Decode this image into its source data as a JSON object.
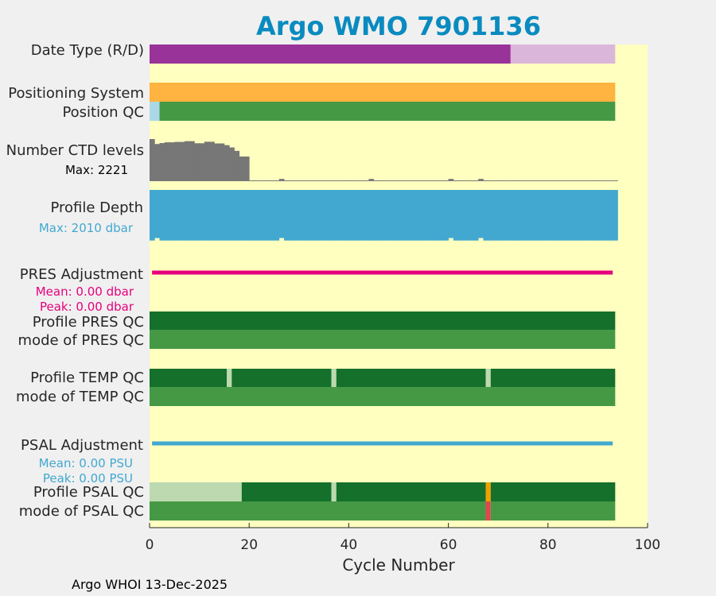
{
  "chart_data": {
    "type": "bar",
    "title": "Argo WMO 7901136",
    "title_color": "#0a8bbf",
    "xlabel": "Cycle Number",
    "xlim": [
      0,
      100
    ],
    "xticks": [
      "0",
      "20",
      "40",
      "60",
      "80",
      "100"
    ],
    "plot_background": "#ffffc0",
    "footer": "Argo WHOI 13-Dec-2025",
    "rows": [
      {
        "label": "Date Type (R/D)",
        "segments": [
          {
            "start": 0,
            "end": 72.5,
            "color": "#993399"
          },
          {
            "start": 72.5,
            "end": 93.5,
            "color": "#dbb6db"
          }
        ]
      },
      {
        "label": "Positioning System",
        "segments": [
          {
            "start": 0,
            "end": 93.5,
            "color": "#ffb340"
          }
        ]
      },
      {
        "label": "Position QC",
        "segments": [
          {
            "start": 0,
            "end": 2,
            "color": "#aad8e6"
          },
          {
            "start": 2,
            "end": 93.5,
            "color": "#459945"
          }
        ]
      },
      {
        "label": "Profile PRES QC",
        "segments": [
          {
            "start": 0,
            "end": 93.5,
            "color": "#14702b"
          }
        ]
      },
      {
        "label": "mode of PRES QC",
        "segments": [
          {
            "start": 0,
            "end": 93.5,
            "color": "#459945"
          }
        ]
      },
      {
        "label": "Profile TEMP QC",
        "segments": [
          {
            "start": 0,
            "end": 15.5,
            "color": "#14702b"
          },
          {
            "start": 15.5,
            "end": 16.5,
            "color": "#bcd9b0"
          },
          {
            "start": 16.5,
            "end": 36.5,
            "color": "#14702b"
          },
          {
            "start": 36.5,
            "end": 37.5,
            "color": "#bcd9b0"
          },
          {
            "start": 37.5,
            "end": 67.5,
            "color": "#14702b"
          },
          {
            "start": 67.5,
            "end": 68.5,
            "color": "#bcd9b0"
          },
          {
            "start": 68.5,
            "end": 93.5,
            "color": "#14702b"
          }
        ]
      },
      {
        "label": "mode of TEMP QC",
        "segments": [
          {
            "start": 0,
            "end": 93.5,
            "color": "#459945"
          }
        ]
      },
      {
        "label": "Profile PSAL QC",
        "segments": [
          {
            "start": 0,
            "end": 18.5,
            "color": "#bcd9b0"
          },
          {
            "start": 18.5,
            "end": 36.5,
            "color": "#14702b"
          },
          {
            "start": 36.5,
            "end": 37.5,
            "color": "#bcd9b0"
          },
          {
            "start": 37.5,
            "end": 67.5,
            "color": "#14702b"
          },
          {
            "start": 67.5,
            "end": 68.5,
            "color": "#f0a000"
          },
          {
            "start": 68.5,
            "end": 93.5,
            "color": "#14702b"
          }
        ]
      },
      {
        "label": "mode of PSAL QC",
        "segments": [
          {
            "start": 0,
            "end": 67.5,
            "color": "#459945"
          },
          {
            "start": 67.5,
            "end": 68.5,
            "color": "#e0474f"
          },
          {
            "start": 68.5,
            "end": 93.5,
            "color": "#459945"
          }
        ]
      }
    ],
    "ctd_levels": {
      "label": "Number CTD levels",
      "max_label": "Max: 2221",
      "color": "#777777",
      "max": 2221,
      "values": [
        2221,
        1960,
        2010,
        2050,
        2050,
        2070,
        2070,
        2110,
        2110,
        2000,
        2000,
        2080,
        2080,
        1990,
        1990,
        1900,
        1780,
        1600,
        1300,
        1300,
        40,
        40,
        40,
        40,
        40,
        40,
        120,
        40,
        40,
        40,
        40,
        40,
        40,
        40,
        40,
        40,
        40,
        40,
        40,
        40,
        40,
        40,
        40,
        40,
        120,
        40,
        40,
        40,
        40,
        40,
        40,
        40,
        40,
        40,
        40,
        40,
        40,
        40,
        40,
        40,
        120,
        40,
        40,
        40,
        40,
        40,
        120,
        40,
        40,
        40,
        40,
        40,
        40,
        40,
        40,
        40,
        40,
        40,
        40,
        40,
        40,
        40,
        40,
        40,
        40,
        40,
        40,
        40,
        40,
        40,
        40,
        40,
        40,
        40
      ]
    },
    "profile_depth": {
      "label": "Profile Depth",
      "max_label": "Max: 2010 dbar",
      "color": "#42a8d0",
      "max": 2010,
      "values": [
        2000,
        1900,
        2000,
        2000,
        2000,
        2000,
        2000,
        2000,
        2000,
        2000,
        2000,
        2000,
        2000,
        2000,
        2000,
        2000,
        2000,
        2000,
        2000,
        2000,
        2000,
        2000,
        2000,
        2000,
        2000,
        2000,
        1900,
        2000,
        2000,
        2000,
        2000,
        2000,
        2000,
        2000,
        2000,
        2000,
        2000,
        2000,
        2000,
        2000,
        2000,
        2000,
        2000,
        2000,
        2000,
        2000,
        2000,
        2000,
        2000,
        2000,
        2000,
        2000,
        2000,
        2000,
        2000,
        2000,
        2000,
        2000,
        2000,
        2000,
        1900,
        2000,
        2000,
        2000,
        2000,
        2000,
        1900,
        2000,
        2000,
        2000,
        2000,
        2000,
        2000,
        2000,
        2000,
        2000,
        2000,
        2000,
        2000,
        2000,
        2000,
        2000,
        2000,
        2000,
        2000,
        2000,
        2000,
        2000,
        2000,
        2000,
        2000,
        2000,
        2000,
        2000
      ]
    },
    "pres_adjustment": {
      "label": "PRES Adjustment",
      "mean_label": "Mean: 0.00 dbar",
      "peak_label": "Peak: 0.00 dbar",
      "color": "#e6007e",
      "start": 0.5,
      "end": 93
    },
    "psal_adjustment": {
      "label": "PSAL Adjustment",
      "mean_label": "Mean: 0.00 PSU",
      "peak_label": "Peak: 0.00 PSU",
      "color": "#42a8d0",
      "start": 0.5,
      "end": 93
    }
  }
}
